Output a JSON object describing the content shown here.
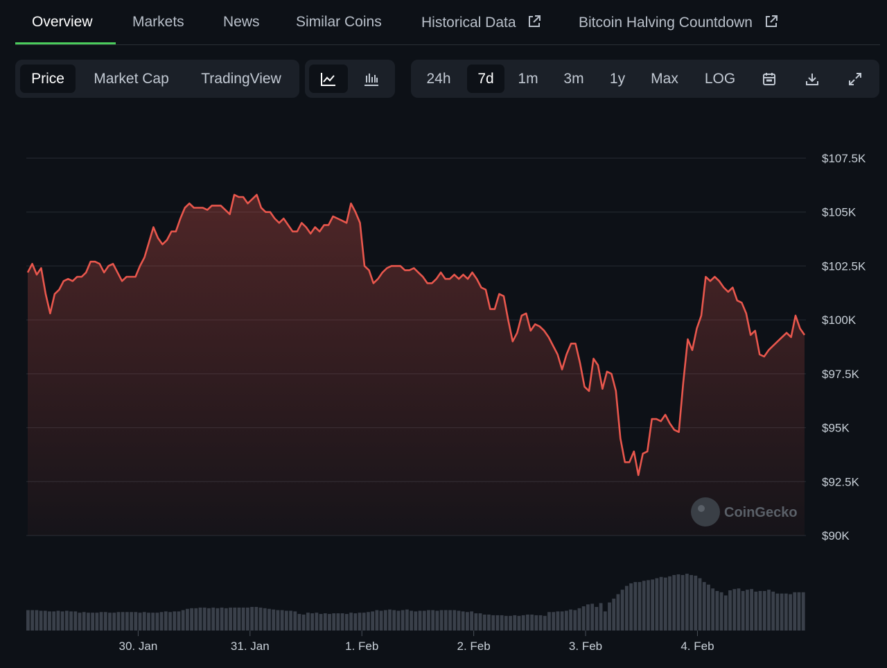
{
  "tabs": [
    {
      "label": "Overview",
      "active": true
    },
    {
      "label": "Markets"
    },
    {
      "label": "News"
    },
    {
      "label": "Similar Coins"
    },
    {
      "label": "Historical Data",
      "external": true
    },
    {
      "label": "Bitcoin Halving Countdown",
      "external": true
    }
  ],
  "view_tabs": [
    "Price",
    "Market Cap",
    "TradingView"
  ],
  "active_view": "Price",
  "chart_style_icons": [
    "line-chart-icon",
    "candlestick-chart-icon"
  ],
  "ranges": [
    "24h",
    "7d",
    "1m",
    "3m",
    "1y",
    "Max",
    "LOG"
  ],
  "active_range": "7d",
  "tool_icons": [
    "calendar-icon",
    "download-icon",
    "fullscreen-icon"
  ],
  "watermark": "CoinGecko",
  "colors": {
    "line": "#e9574d",
    "accent_tab": "#4bcc5c",
    "volume": "#3a404a"
  },
  "chart_data": {
    "type": "area",
    "y_ticks": [
      "$90K",
      "$92.5K",
      "$95K",
      "$97.5K",
      "$100K",
      "$102.5K",
      "$105K",
      "$107.5K"
    ],
    "y_tick_values": [
      90000,
      92500,
      95000,
      97500,
      100000,
      102500,
      105000,
      107500
    ],
    "ylim": [
      90000,
      107500
    ],
    "x_ticks": [
      "30. Jan",
      "31. Jan",
      "1. Feb",
      "2. Feb",
      "3. Feb",
      "4. Feb"
    ],
    "x_tick_days": [
      1,
      2,
      3,
      4,
      5,
      6
    ],
    "xlim_days": [
      0,
      6.97
    ],
    "price": [
      102200,
      102600,
      102100,
      102400,
      101200,
      100300,
      101200,
      101400,
      101800,
      101900,
      101800,
      102000,
      102000,
      102200,
      102700,
      102700,
      102600,
      102200,
      102500,
      102600,
      102200,
      101800,
      102000,
      102000,
      102000,
      102500,
      102900,
      103600,
      104300,
      103800,
      103500,
      103700,
      104100,
      104100,
      104700,
      105200,
      105400,
      105200,
      105200,
      105200,
      105100,
      105300,
      105300,
      105300,
      105100,
      104900,
      105800,
      105700,
      105700,
      105400,
      105600,
      105800,
      105200,
      105000,
      105000,
      104700,
      104500,
      104700,
      104400,
      104100,
      104100,
      104500,
      104300,
      104000,
      104300,
      104100,
      104400,
      104400,
      104800,
      104700,
      104600,
      104500,
      105400,
      105000,
      104500,
      102500,
      102300,
      101700,
      101900,
      102200,
      102400,
      102500,
      102500,
      102500,
      102300,
      102300,
      102400,
      102200,
      102000,
      101700,
      101700,
      101900,
      102200,
      101900,
      101900,
      102100,
      101900,
      102100,
      101900,
      102200,
      101900,
      101500,
      101400,
      100500,
      100500,
      101200,
      101100,
      100000,
      99000,
      99400,
      100200,
      100300,
      99500,
      99800,
      99700,
      99500,
      99200,
      98800,
      98400,
      97700,
      98400,
      98900,
      98900,
      98000,
      96900,
      96700,
      98200,
      97900,
      96800,
      97600,
      97500,
      96700,
      94500,
      93400,
      93400,
      93900,
      92800,
      93800,
      93900,
      95400,
      95400,
      95300,
      95600,
      95200,
      94900,
      94800,
      97100,
      99100,
      98600,
      99600,
      100200,
      102000,
      101800,
      102000,
      101800,
      101500,
      101300,
      101500,
      100900,
      100800,
      100300,
      99300,
      99500,
      98400,
      98300,
      98600,
      98800,
      99000,
      99200,
      99400,
      99200,
      100200,
      99600,
      99300
    ],
    "volume_relative": [
      0.32,
      0.32,
      0.32,
      0.31,
      0.31,
      0.3,
      0.3,
      0.31,
      0.3,
      0.31,
      0.3,
      0.3,
      0.28,
      0.29,
      0.28,
      0.28,
      0.28,
      0.29,
      0.29,
      0.28,
      0.28,
      0.29,
      0.29,
      0.29,
      0.29,
      0.29,
      0.28,
      0.29,
      0.28,
      0.28,
      0.28,
      0.29,
      0.3,
      0.29,
      0.3,
      0.3,
      0.32,
      0.34,
      0.35,
      0.35,
      0.36,
      0.36,
      0.35,
      0.36,
      0.35,
      0.36,
      0.35,
      0.36,
      0.36,
      0.36,
      0.36,
      0.36,
      0.37,
      0.37,
      0.36,
      0.35,
      0.34,
      0.33,
      0.32,
      0.32,
      0.31,
      0.31,
      0.3,
      0.26,
      0.25,
      0.28,
      0.27,
      0.28,
      0.26,
      0.27,
      0.26,
      0.27,
      0.27,
      0.27,
      0.26,
      0.28,
      0.27,
      0.28,
      0.28,
      0.29,
      0.3,
      0.32,
      0.31,
      0.32,
      0.33,
      0.32,
      0.31,
      0.32,
      0.33,
      0.31,
      0.3,
      0.31,
      0.31,
      0.32,
      0.32,
      0.31,
      0.32,
      0.32,
      0.32,
      0.32,
      0.31,
      0.3,
      0.29,
      0.3,
      0.27,
      0.27,
      0.25,
      0.25,
      0.24,
      0.24,
      0.24,
      0.23,
      0.23,
      0.24,
      0.23,
      0.24,
      0.25,
      0.25,
      0.24,
      0.24,
      0.23,
      0.29,
      0.29,
      0.3,
      0.3,
      0.31,
      0.33,
      0.32,
      0.35,
      0.38,
      0.41,
      0.42,
      0.37,
      0.43,
      0.3,
      0.44,
      0.5,
      0.57,
      0.64,
      0.7,
      0.74,
      0.76,
      0.76,
      0.78,
      0.79,
      0.8,
      0.82,
      0.84,
      0.83,
      0.85,
      0.87,
      0.88,
      0.87,
      0.89,
      0.87,
      0.86,
      0.82,
      0.76,
      0.72,
      0.66,
      0.62,
      0.6,
      0.55,
      0.63,
      0.65,
      0.66,
      0.62,
      0.64,
      0.65,
      0.61,
      0.62,
      0.62,
      0.64,
      0.61,
      0.58,
      0.58,
      0.58,
      0.57,
      0.6,
      0.6,
      0.6
    ]
  }
}
